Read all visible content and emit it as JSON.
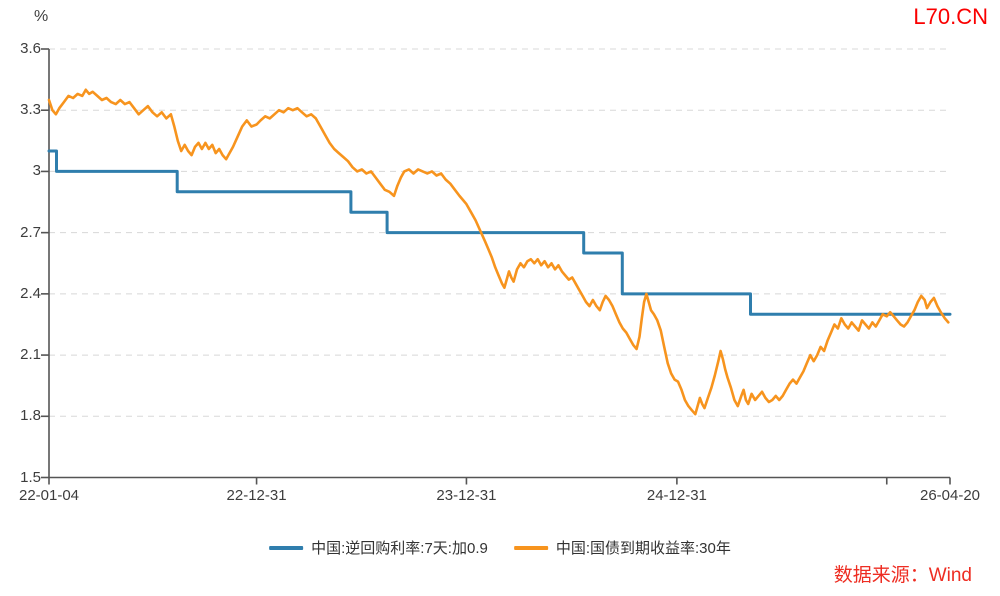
{
  "header": {
    "unit_label": "%",
    "watermark": "L70.CN"
  },
  "footer": {
    "source": "数据来源：Wind"
  },
  "legend": [
    {
      "label": "中国:逆回购利率:7天:加0.9",
      "color": "#2f7ead"
    },
    {
      "label": "中国:国债到期收益率:30年",
      "color": "#f7941e"
    }
  ],
  "colors": {
    "axis": "#555555",
    "grid": "#d8d8d8",
    "tick_text": "#3d3d3d",
    "watermark_red": "#fa0000",
    "source_red": "#ee2d22",
    "series_blue": "#2f7ead",
    "series_orange": "#f7941e"
  },
  "chart_data": {
    "type": "line",
    "title": "",
    "unit": "%",
    "ylim": [
      1.5,
      3.6
    ],
    "y_ticks": [
      3.6,
      3.3,
      3.0,
      2.7,
      2.4,
      2.1,
      1.8,
      1.5
    ],
    "y_tick_labels": [
      "3.6",
      "3.3",
      "3",
      "2.7",
      "2.4",
      "2.1",
      "1.8",
      "1.5"
    ],
    "grid": "horizontal-dashed",
    "legend_position": "bottom-center",
    "x_unit": "days since 2022-01-04",
    "x_range_days": [
      0,
      1567
    ],
    "x_ticks": [
      {
        "day": 0,
        "label": "22-01-04"
      },
      {
        "day": 361,
        "label": "22-12-31"
      },
      {
        "day": 726,
        "label": "23-12-31"
      },
      {
        "day": 1092,
        "label": "24-12-31"
      },
      {
        "day": 1457,
        "label": ""
      },
      {
        "day": 1567,
        "label": "26-04-20"
      }
    ],
    "series": [
      {
        "name": "中国:逆回购利率:7天:加0.9",
        "color": "#2f7ead",
        "width": 3,
        "style": "step",
        "points": [
          [
            0,
            3.1
          ],
          [
            13,
            3.1
          ],
          [
            13,
            3.0
          ],
          [
            223,
            3.0
          ],
          [
            223,
            2.9
          ],
          [
            525,
            2.9
          ],
          [
            525,
            2.8
          ],
          [
            588,
            2.8
          ],
          [
            588,
            2.7
          ],
          [
            930,
            2.7
          ],
          [
            930,
            2.6
          ],
          [
            997,
            2.6
          ],
          [
            997,
            2.4
          ],
          [
            1220,
            2.4
          ],
          [
            1220,
            2.3
          ],
          [
            1567,
            2.3
          ]
        ]
      },
      {
        "name": "中国:国债到期收益率:30年",
        "color": "#f7941e",
        "width": 2.6,
        "style": "line",
        "points": [
          [
            0,
            3.35
          ],
          [
            6,
            3.3
          ],
          [
            12,
            3.28
          ],
          [
            18,
            3.31
          ],
          [
            26,
            3.34
          ],
          [
            34,
            3.37
          ],
          [
            42,
            3.36
          ],
          [
            50,
            3.38
          ],
          [
            58,
            3.37
          ],
          [
            64,
            3.4
          ],
          [
            70,
            3.38
          ],
          [
            76,
            3.39
          ],
          [
            84,
            3.37
          ],
          [
            92,
            3.35
          ],
          [
            100,
            3.36
          ],
          [
            108,
            3.34
          ],
          [
            116,
            3.33
          ],
          [
            124,
            3.35
          ],
          [
            132,
            3.33
          ],
          [
            140,
            3.34
          ],
          [
            148,
            3.31
          ],
          [
            156,
            3.28
          ],
          [
            164,
            3.3
          ],
          [
            172,
            3.32
          ],
          [
            180,
            3.29
          ],
          [
            188,
            3.27
          ],
          [
            196,
            3.29
          ],
          [
            204,
            3.26
          ],
          [
            212,
            3.28
          ],
          [
            218,
            3.22
          ],
          [
            224,
            3.15
          ],
          [
            230,
            3.1
          ],
          [
            236,
            3.13
          ],
          [
            242,
            3.1
          ],
          [
            248,
            3.08
          ],
          [
            254,
            3.12
          ],
          [
            260,
            3.14
          ],
          [
            266,
            3.11
          ],
          [
            272,
            3.14
          ],
          [
            278,
            3.11
          ],
          [
            284,
            3.13
          ],
          [
            290,
            3.09
          ],
          [
            296,
            3.11
          ],
          [
            302,
            3.08
          ],
          [
            308,
            3.06
          ],
          [
            314,
            3.09
          ],
          [
            320,
            3.12
          ],
          [
            328,
            3.17
          ],
          [
            336,
            3.22
          ],
          [
            344,
            3.25
          ],
          [
            352,
            3.22
          ],
          [
            361,
            3.23
          ],
          [
            368,
            3.25
          ],
          [
            376,
            3.27
          ],
          [
            384,
            3.26
          ],
          [
            392,
            3.28
          ],
          [
            400,
            3.3
          ],
          [
            408,
            3.29
          ],
          [
            416,
            3.31
          ],
          [
            424,
            3.3
          ],
          [
            432,
            3.31
          ],
          [
            440,
            3.29
          ],
          [
            448,
            3.27
          ],
          [
            456,
            3.28
          ],
          [
            464,
            3.26
          ],
          [
            472,
            3.22
          ],
          [
            480,
            3.18
          ],
          [
            488,
            3.14
          ],
          [
            496,
            3.11
          ],
          [
            504,
            3.09
          ],
          [
            512,
            3.07
          ],
          [
            520,
            3.05
          ],
          [
            528,
            3.02
          ],
          [
            536,
            3.0
          ],
          [
            544,
            3.01
          ],
          [
            552,
            2.99
          ],
          [
            560,
            3.0
          ],
          [
            568,
            2.97
          ],
          [
            576,
            2.94
          ],
          [
            584,
            2.91
          ],
          [
            592,
            2.9
          ],
          [
            600,
            2.88
          ],
          [
            606,
            2.93
          ],
          [
            612,
            2.97
          ],
          [
            618,
            3.0
          ],
          [
            626,
            3.01
          ],
          [
            634,
            2.99
          ],
          [
            642,
            3.01
          ],
          [
            650,
            3.0
          ],
          [
            658,
            2.99
          ],
          [
            666,
            3.0
          ],
          [
            674,
            2.98
          ],
          [
            682,
            2.99
          ],
          [
            690,
            2.96
          ],
          [
            698,
            2.94
          ],
          [
            706,
            2.91
          ],
          [
            714,
            2.88
          ],
          [
            720,
            2.86
          ],
          [
            726,
            2.84
          ],
          [
            734,
            2.8
          ],
          [
            742,
            2.76
          ],
          [
            750,
            2.71
          ],
          [
            758,
            2.66
          ],
          [
            764,
            2.62
          ],
          [
            770,
            2.58
          ],
          [
            776,
            2.53
          ],
          [
            782,
            2.49
          ],
          [
            788,
            2.45
          ],
          [
            792,
            2.43
          ],
          [
            796,
            2.47
          ],
          [
            800,
            2.51
          ],
          [
            804,
            2.48
          ],
          [
            808,
            2.46
          ],
          [
            814,
            2.52
          ],
          [
            820,
            2.55
          ],
          [
            826,
            2.53
          ],
          [
            832,
            2.56
          ],
          [
            838,
            2.57
          ],
          [
            844,
            2.55
          ],
          [
            850,
            2.57
          ],
          [
            856,
            2.54
          ],
          [
            862,
            2.56
          ],
          [
            868,
            2.53
          ],
          [
            874,
            2.55
          ],
          [
            880,
            2.52
          ],
          [
            886,
            2.54
          ],
          [
            892,
            2.51
          ],
          [
            898,
            2.49
          ],
          [
            904,
            2.47
          ],
          [
            910,
            2.48
          ],
          [
            916,
            2.45
          ],
          [
            922,
            2.42
          ],
          [
            928,
            2.39
          ],
          [
            934,
            2.36
          ],
          [
            940,
            2.34
          ],
          [
            946,
            2.37
          ],
          [
            952,
            2.34
          ],
          [
            958,
            2.32
          ],
          [
            963,
            2.36
          ],
          [
            968,
            2.39
          ],
          [
            974,
            2.37
          ],
          [
            980,
            2.34
          ],
          [
            986,
            2.3
          ],
          [
            992,
            2.26
          ],
          [
            998,
            2.23
          ],
          [
            1004,
            2.21
          ],
          [
            1010,
            2.18
          ],
          [
            1016,
            2.15
          ],
          [
            1022,
            2.13
          ],
          [
            1027,
            2.19
          ],
          [
            1031,
            2.28
          ],
          [
            1035,
            2.36
          ],
          [
            1039,
            2.4
          ],
          [
            1043,
            2.36
          ],
          [
            1047,
            2.32
          ],
          [
            1052,
            2.3
          ],
          [
            1058,
            2.27
          ],
          [
            1064,
            2.22
          ],
          [
            1070,
            2.14
          ],
          [
            1076,
            2.06
          ],
          [
            1082,
            2.01
          ],
          [
            1088,
            1.98
          ],
          [
            1094,
            1.97
          ],
          [
            1100,
            1.93
          ],
          [
            1106,
            1.88
          ],
          [
            1112,
            1.85
          ],
          [
            1118,
            1.83
          ],
          [
            1124,
            1.81
          ],
          [
            1128,
            1.85
          ],
          [
            1132,
            1.89
          ],
          [
            1136,
            1.86
          ],
          [
            1140,
            1.84
          ],
          [
            1146,
            1.89
          ],
          [
            1152,
            1.94
          ],
          [
            1158,
            2.0
          ],
          [
            1164,
            2.07
          ],
          [
            1168,
            2.12
          ],
          [
            1172,
            2.08
          ],
          [
            1176,
            2.03
          ],
          [
            1180,
            1.99
          ],
          [
            1186,
            1.94
          ],
          [
            1192,
            1.88
          ],
          [
            1198,
            1.85
          ],
          [
            1204,
            1.9
          ],
          [
            1208,
            1.93
          ],
          [
            1212,
            1.88
          ],
          [
            1216,
            1.86
          ],
          [
            1222,
            1.91
          ],
          [
            1228,
            1.88
          ],
          [
            1234,
            1.9
          ],
          [
            1240,
            1.92
          ],
          [
            1246,
            1.89
          ],
          [
            1252,
            1.87
          ],
          [
            1258,
            1.88
          ],
          [
            1264,
            1.9
          ],
          [
            1270,
            1.88
          ],
          [
            1276,
            1.9
          ],
          [
            1282,
            1.93
          ],
          [
            1288,
            1.96
          ],
          [
            1294,
            1.98
          ],
          [
            1300,
            1.96
          ],
          [
            1306,
            1.99
          ],
          [
            1312,
            2.02
          ],
          [
            1318,
            2.06
          ],
          [
            1324,
            2.1
          ],
          [
            1330,
            2.07
          ],
          [
            1336,
            2.1
          ],
          [
            1342,
            2.14
          ],
          [
            1348,
            2.12
          ],
          [
            1354,
            2.17
          ],
          [
            1360,
            2.21
          ],
          [
            1366,
            2.25
          ],
          [
            1372,
            2.23
          ],
          [
            1378,
            2.28
          ],
          [
            1384,
            2.25
          ],
          [
            1390,
            2.23
          ],
          [
            1396,
            2.26
          ],
          [
            1402,
            2.24
          ],
          [
            1408,
            2.22
          ],
          [
            1414,
            2.27
          ],
          [
            1420,
            2.25
          ],
          [
            1426,
            2.23
          ],
          [
            1432,
            2.26
          ],
          [
            1438,
            2.24
          ],
          [
            1444,
            2.27
          ],
          [
            1450,
            2.3
          ],
          [
            1457,
            2.29
          ],
          [
            1463,
            2.31
          ],
          [
            1469,
            2.29
          ],
          [
            1475,
            2.27
          ],
          [
            1481,
            2.25
          ],
          [
            1487,
            2.24
          ],
          [
            1493,
            2.26
          ],
          [
            1499,
            2.29
          ],
          [
            1505,
            2.32
          ],
          [
            1511,
            2.36
          ],
          [
            1517,
            2.39
          ],
          [
            1523,
            2.37
          ],
          [
            1527,
            2.33
          ],
          [
            1533,
            2.36
          ],
          [
            1539,
            2.38
          ],
          [
            1545,
            2.34
          ],
          [
            1551,
            2.31
          ],
          [
            1558,
            2.28
          ],
          [
            1564,
            2.26
          ]
        ]
      }
    ]
  }
}
